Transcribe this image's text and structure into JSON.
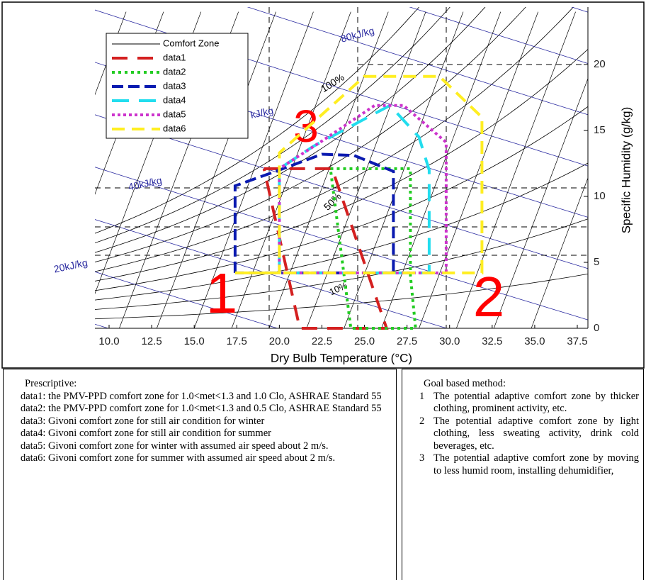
{
  "chart_data": {
    "type": "psychrometric",
    "xlabel": "Dry Bulb Temperature (°C)",
    "ylabel": "Specific Humidity (g/kg)",
    "y_axis_side": "right",
    "xlim": [
      10,
      37.5
    ],
    "xticks": [
      {
        "value": 10,
        "label": "10.0"
      },
      {
        "value": 12.5,
        "label": "12.5"
      },
      {
        "value": 15,
        "label": "15.0"
      },
      {
        "value": 17.5,
        "label": "17.5"
      },
      {
        "value": 20,
        "label": "20.0"
      },
      {
        "value": 22.5,
        "label": "22.5"
      },
      {
        "value": 25,
        "label": "25.0"
      },
      {
        "value": 27.5,
        "label": "27.5"
      },
      {
        "value": 30,
        "label": "30.0"
      },
      {
        "value": 32.5,
        "label": "32.5"
      },
      {
        "value": 35,
        "label": "35.0"
      },
      {
        "value": 37.5,
        "label": "37.5"
      }
    ],
    "ylim": [
      0,
      20
    ],
    "yticks": [
      0,
      5,
      10,
      15,
      20
    ],
    "comfort_zone": {
      "name": "Comfort Zone",
      "color": "#000000"
    },
    "series": [
      {
        "name": "data1",
        "color": "#d42020",
        "x": [
          19.1,
          23.1,
          26.3,
          21.2,
          19.1
        ],
        "values": [
          12.1,
          12.1,
          0,
          0,
          12.1
        ]
      },
      {
        "name": "data2",
        "color": "#22cc22",
        "x": [
          23.0,
          27.7,
          27.7,
          28.0,
          24.2,
          23.0
        ],
        "values": [
          12.1,
          12.1,
          4,
          0,
          0,
          12.1
        ]
      },
      {
        "name": "data3",
        "color": "#0a1ab0",
        "x": [
          17.4,
          17.4,
          20,
          22.5,
          24.4,
          26.7,
          26.7,
          17.4
        ],
        "values": [
          4.2,
          10.8,
          12,
          13.2,
          13.1,
          11.9,
          4.2,
          4.2
        ]
      },
      {
        "name": "data4",
        "color": "#22ddee",
        "x": [
          20,
          20,
          22,
          26.5,
          28.2,
          28.8,
          28.8,
          20
        ],
        "values": [
          4.2,
          12.1,
          13.8,
          16.9,
          14.5,
          12,
          4.2,
          4.2
        ]
      },
      {
        "name": "data5",
        "color": "#cc33cc",
        "x": [
          20,
          20,
          22.5,
          25.6,
          27.3,
          29.8,
          29.8,
          20
        ],
        "values": [
          4.2,
          12.1,
          14.2,
          16.9,
          16.9,
          14.1,
          4.2,
          4.2
        ]
      },
      {
        "name": "data6",
        "color": "#ffee22",
        "x": [
          17.4,
          20,
          20,
          25,
          29.4,
          31.9,
          31.9,
          17.4
        ],
        "values": [
          4.2,
          4.2,
          13.3,
          19.1,
          19.1,
          16,
          4.2,
          4.2
        ]
      }
    ],
    "annotations": [
      "80kJ/kg",
      "100%",
      "kJ/kg",
      "40kJ/kg",
      "50%",
      "20kJ/kg",
      "10%",
      "1",
      "2",
      "3"
    ]
  },
  "prescriptive": {
    "title": "Prescriptive:",
    "items": [
      "data1: the PMV-PPD comfort zone for 1.0<met<1.3 and 1.0 Clo, ASHRAE Standard 55",
      "data2: the PMV-PPD comfort zone for 1.0<met<1.3 and 0.5 Clo, ASHRAE Standard 55",
      "data3: Givoni comfort zone for still air condition for winter",
      "data4: Givoni comfort zone for still air condition for summer",
      "data5: Givoni comfort zone for winter with assumed air speed about 2 m/s.",
      "data6: Givoni comfort zone for summer with assumed air speed about 2 m/s."
    ]
  },
  "goal_based": {
    "title": "Goal based method:",
    "items": [
      {
        "number": "1",
        "text": "The potential adaptive comfort zone by thicker clothing, prominent activity, etc."
      },
      {
        "number": "2",
        "text": "The potential adaptive comfort zone by light clothing, less sweating activity, drink cold beverages, etc."
      },
      {
        "number": "3",
        "text": "The potential adaptive comfort zone by moving to less humid room, installing dehumidifier,"
      }
    ]
  }
}
